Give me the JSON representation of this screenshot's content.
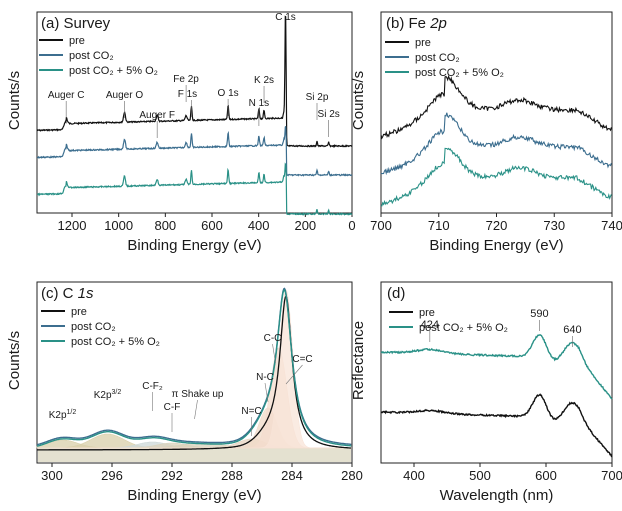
{
  "chart_data": [
    {
      "type": "line",
      "panel_label": "(a) Survey",
      "xlabel": "Binding Energy (eV)",
      "ylabel": "Counts/s",
      "xlim": [
        1350,
        0
      ],
      "x_ticks": [
        1200,
        1000,
        800,
        600,
        400,
        200,
        0
      ],
      "legend": {
        "placement": "top-left"
      },
      "series": [
        {
          "name": "pre",
          "color": "#111111",
          "offset": 2
        },
        {
          "name": "post CO₂",
          "color": "#3c6e8f",
          "offset": 1
        },
        {
          "name": "post CO₂ + 5% O₂",
          "color": "#2a9187",
          "offset": 0
        }
      ],
      "annotations": [
        {
          "text": "Auger C",
          "x": 1225
        },
        {
          "text": "Auger O",
          "x": 975
        },
        {
          "text": "Auger F",
          "x": 835
        },
        {
          "text": "Fe 2p",
          "x": 711
        },
        {
          "text": "F 1s",
          "x": 688
        },
        {
          "text": "O 1s",
          "x": 531
        },
        {
          "text": "N 1s",
          "x": 399
        },
        {
          "text": "K 2s",
          "x": 377
        },
        {
          "text": "C 1s",
          "x": 285
        },
        {
          "text": "Si 2p",
          "x": 150
        },
        {
          "text": "Si 2s",
          "x": 100
        }
      ]
    },
    {
      "type": "line",
      "panel_label": "(b) Fe 2p",
      "xlabel": "Binding Energy (eV)",
      "ylabel": "Counts/s",
      "xlim": [
        700,
        740
      ],
      "x_ticks": [
        700,
        710,
        720,
        730,
        740
      ],
      "legend": {
        "placement": "top-left"
      },
      "series": [
        {
          "name": "pre",
          "color": "#111111",
          "offset": 2
        },
        {
          "name": "post CO₂",
          "color": "#3c6e8f",
          "offset": 1
        },
        {
          "name": "post CO₂ + 5% O₂",
          "color": "#2a9187",
          "offset": 0
        }
      ]
    },
    {
      "type": "line",
      "panel_label": "(c) C 1s",
      "xlabel": "Binding Energy (eV)",
      "ylabel": "Counts/s",
      "xlim": [
        301,
        280
      ],
      "x_ticks": [
        300,
        296,
        292,
        288,
        284,
        280
      ],
      "legend": {
        "placement": "top-left"
      },
      "series": [
        {
          "name": "pre",
          "color": "#111111"
        },
        {
          "name": "post CO₂",
          "color": "#3c6e8f"
        },
        {
          "name": "post CO₂ + 5% O₂",
          "color": "#2a9187"
        }
      ],
      "annotations": [
        {
          "text": "K2p1/2",
          "x": 299.3
        },
        {
          "text": "K2p3/2",
          "x": 296.3
        },
        {
          "text": "C-F₂",
          "x": 293.3
        },
        {
          "text": "C-F",
          "x": 292.0
        },
        {
          "text": "π Shake up",
          "x": 290.5
        },
        {
          "text": "N=C",
          "x": 286.7
        },
        {
          "text": "N-C",
          "x": 285.6
        },
        {
          "text": "C-C",
          "x": 285.1
        },
        {
          "text": "C=C",
          "x": 284.4
        }
      ]
    },
    {
      "type": "line",
      "panel_label": "(d)",
      "xlabel": "Wavelength (nm)",
      "ylabel": "Reflectance",
      "xlim": [
        350,
        700
      ],
      "x_ticks": [
        400,
        500,
        600,
        700
      ],
      "legend": {
        "placement": "top-left"
      },
      "series": [
        {
          "name": "pre",
          "color": "#111111",
          "offset": 0
        },
        {
          "name": "post CO₂ + 5% O₂",
          "color": "#2a9187",
          "offset": 1
        }
      ],
      "annotations": [
        {
          "text": "424",
          "x": 424
        },
        {
          "text": "590",
          "x": 590
        },
        {
          "text": "640",
          "x": 640
        }
      ]
    }
  ]
}
